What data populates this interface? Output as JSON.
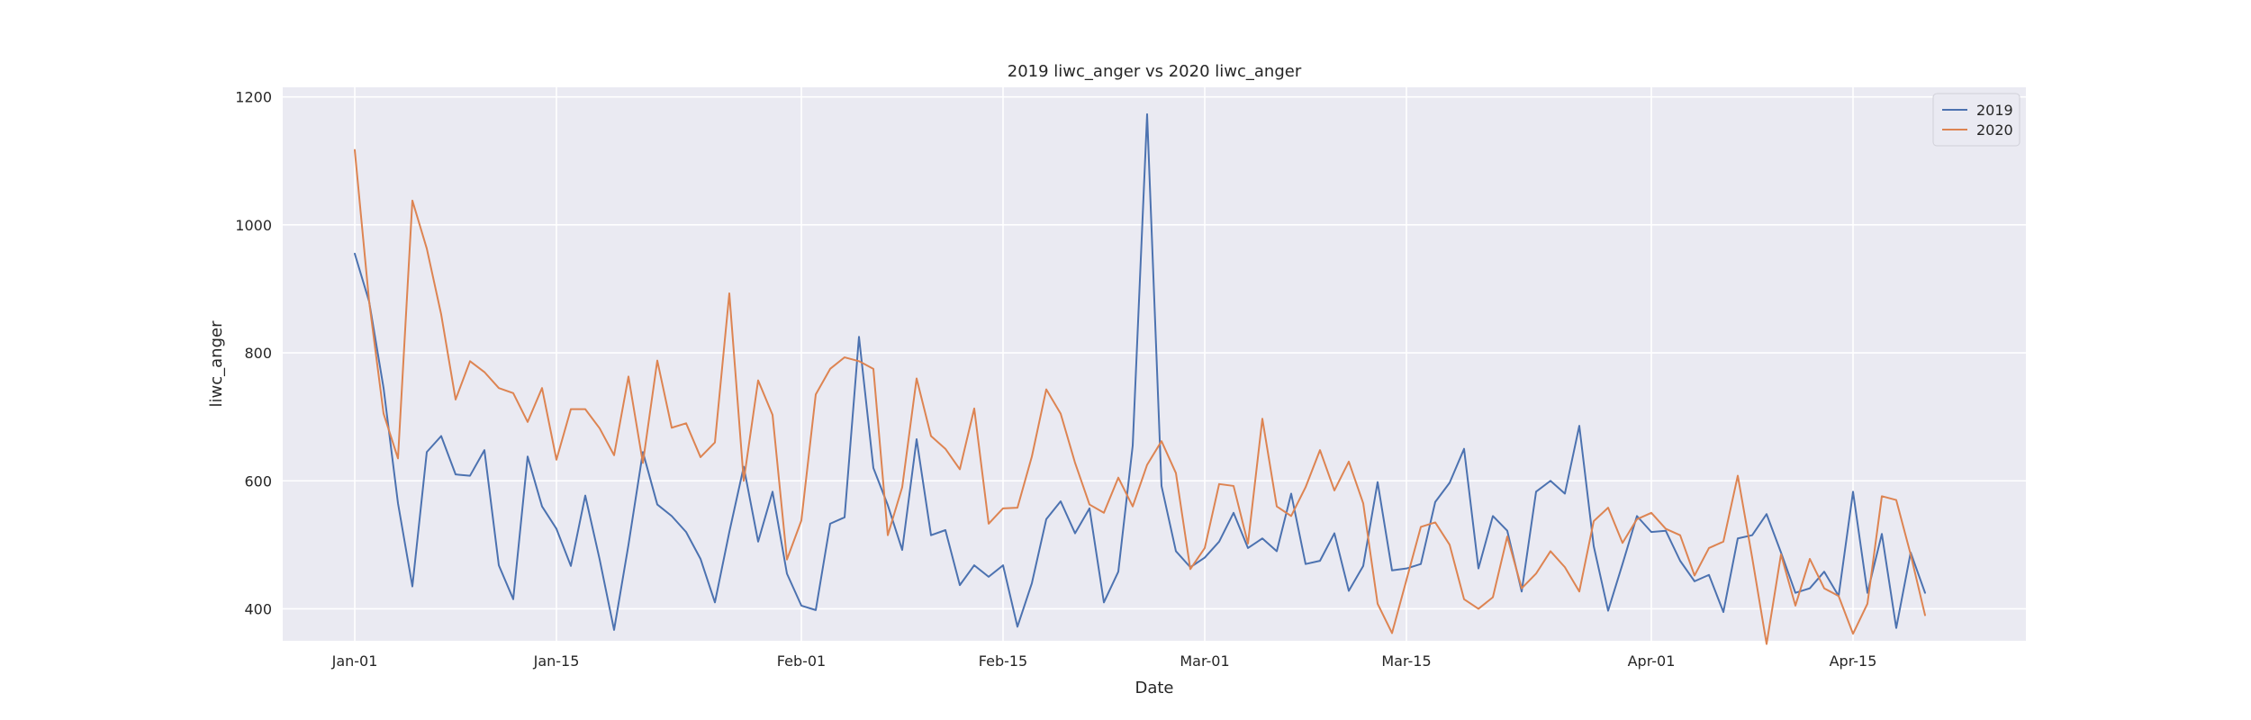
{
  "chart_data": {
    "type": "line",
    "title": "2019 liwc_anger vs 2020 liwc_anger",
    "xlabel": "Date",
    "ylabel": "liwc_anger",
    "x_start": "Jan-01",
    "x_tick_labels": [
      "Jan-01",
      "Jan-15",
      "Feb-01",
      "Feb-15",
      "Mar-01",
      "Mar-15",
      "Apr-01",
      "Apr-15"
    ],
    "x_tick_positions": [
      "Jan-01",
      "Jan-15",
      "Feb-01",
      "Feb-15",
      "Mar-01",
      "Mar-15",
      "Apr-01",
      "Apr-15"
    ],
    "xlim": [
      "Dec-27",
      "Apr-27"
    ],
    "ylim": [
      350,
      1215
    ],
    "y_ticks": [
      400,
      600,
      800,
      1000,
      1200
    ],
    "grid": true,
    "legend_position": "top-right",
    "series": [
      {
        "name": "2019",
        "color": "#4c72b0",
        "values": [
          955,
          880,
          745,
          565,
          435,
          645,
          670,
          610,
          608,
          648,
          468,
          415,
          638,
          560,
          525,
          467,
          577,
          477,
          367,
          500,
          645,
          563,
          545,
          520,
          478,
          410,
          520,
          622,
          505,
          583,
          455,
          405,
          398,
          533,
          543,
          825,
          620,
          562,
          492,
          665,
          515,
          523,
          437,
          468,
          450,
          468,
          372,
          440,
          540,
          568,
          518,
          557,
          410,
          458,
          655,
          1173,
          592,
          490,
          465,
          480,
          505,
          550,
          495,
          510,
          490,
          580,
          470,
          475,
          518,
          428,
          467,
          598,
          460,
          463,
          470,
          567,
          597,
          650,
          463,
          545,
          522,
          427,
          583,
          600,
          580,
          686,
          498,
          397,
          470,
          545,
          520,
          522,
          475,
          443,
          453,
          395,
          510,
          515,
          548,
          488,
          425,
          432,
          458,
          420,
          583,
          425,
          517,
          370,
          488,
          425
        ]
      },
      {
        "name": "2020",
        "color": "#dd8452",
        "values": [
          1117,
          880,
          705,
          635,
          1038,
          963,
          860,
          727,
          787,
          770,
          745,
          737,
          692,
          745,
          633,
          712,
          712,
          682,
          640,
          763,
          628,
          788,
          683,
          690,
          637,
          660,
          893,
          600,
          757,
          703,
          477,
          538,
          735,
          775,
          793,
          787,
          775,
          515,
          590,
          760,
          670,
          650,
          618,
          713,
          533,
          557,
          558,
          638,
          743,
          705,
          628,
          563,
          550,
          605,
          560,
          625,
          662,
          612,
          462,
          495,
          595,
          592,
          502,
          697,
          560,
          545,
          590,
          648,
          585,
          630,
          565,
          408,
          362,
          445,
          528,
          535,
          500,
          415,
          400,
          418,
          513,
          432,
          455,
          490,
          465,
          427,
          537,
          558,
          503,
          540,
          550,
          525,
          515,
          452,
          495,
          505,
          608,
          480,
          345,
          485,
          405,
          478,
          432,
          420,
          361,
          408,
          576,
          570,
          485,
          390
        ]
      }
    ]
  }
}
